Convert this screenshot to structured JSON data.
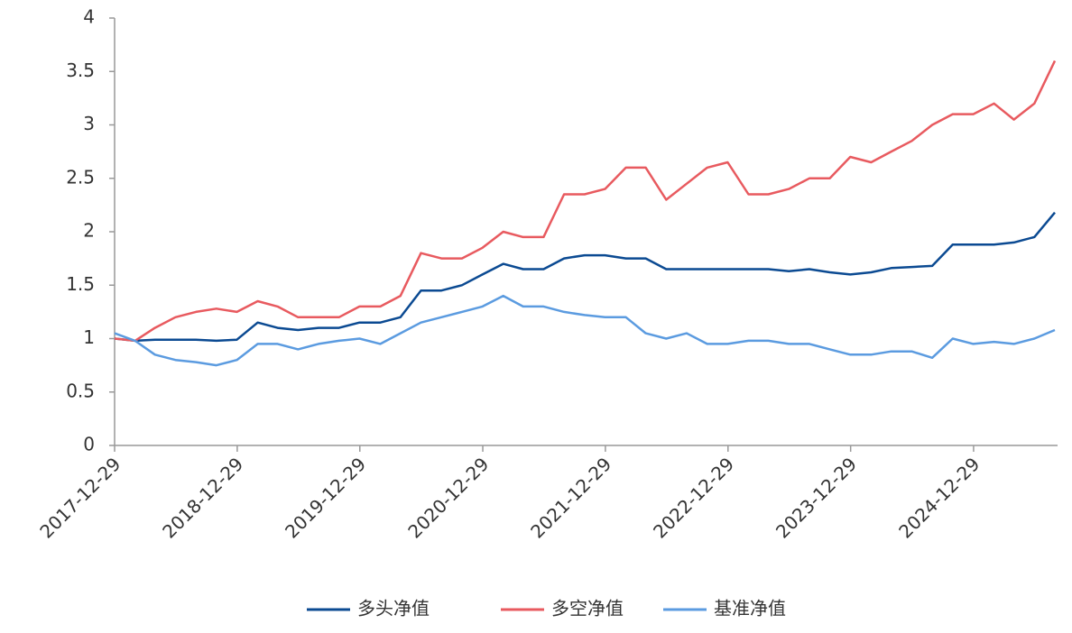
{
  "chart_data": {
    "type": "line",
    "x": [
      "2017-12-29",
      "2018-02-28",
      "2018-04-28",
      "2018-06-28",
      "2018-08-28",
      "2018-10-28",
      "2018-12-28",
      "2019-02-28",
      "2019-04-28",
      "2019-06-28",
      "2019-08-28",
      "2019-10-28",
      "2019-12-28",
      "2020-02-28",
      "2020-04-28",
      "2020-06-28",
      "2020-08-28",
      "2020-10-28",
      "2020-12-28",
      "2021-02-28",
      "2021-04-28",
      "2021-06-28",
      "2021-08-28",
      "2021-10-28",
      "2021-12-28",
      "2022-02-28",
      "2022-04-28",
      "2022-06-28",
      "2022-08-28",
      "2022-10-28",
      "2022-12-28",
      "2023-02-28",
      "2023-04-28",
      "2023-06-28",
      "2023-08-28",
      "2023-10-28",
      "2023-12-28",
      "2024-02-28",
      "2024-04-28",
      "2024-06-28",
      "2024-08-28",
      "2024-10-28",
      "2024-12-28",
      "2025-02-28",
      "2025-04-28",
      "2025-06-28",
      "2025-08-28"
    ],
    "series": [
      {
        "name": "多头净值",
        "color": "#0b4a92",
        "values": [
          1.0,
          0.98,
          0.99,
          0.99,
          0.99,
          0.98,
          0.99,
          1.15,
          1.1,
          1.08,
          1.1,
          1.1,
          1.15,
          1.15,
          1.2,
          1.45,
          1.45,
          1.5,
          1.6,
          1.7,
          1.65,
          1.65,
          1.75,
          1.78,
          1.78,
          1.75,
          1.75,
          1.65,
          1.65,
          1.65,
          1.65,
          1.65,
          1.65,
          1.63,
          1.65,
          1.62,
          1.6,
          1.62,
          1.66,
          1.67,
          1.68,
          1.88,
          1.88,
          1.88,
          1.9,
          1.95,
          2.18
        ]
      },
      {
        "name": "多空净值",
        "color": "#e85a5f",
        "values": [
          1.0,
          0.98,
          1.1,
          1.2,
          1.25,
          1.28,
          1.25,
          1.35,
          1.3,
          1.2,
          1.2,
          1.2,
          1.3,
          1.3,
          1.4,
          1.8,
          1.75,
          1.75,
          1.85,
          2.0,
          1.95,
          1.95,
          2.35,
          2.35,
          2.4,
          2.6,
          2.6,
          2.3,
          2.45,
          2.6,
          2.65,
          2.35,
          2.35,
          2.4,
          2.5,
          2.5,
          2.7,
          2.65,
          2.75,
          2.85,
          3.0,
          3.1,
          3.1,
          3.2,
          3.05,
          3.2,
          3.6
        ]
      },
      {
        "name": "基准净值",
        "color": "#5b9be0",
        "values": [
          1.05,
          0.98,
          0.85,
          0.8,
          0.78,
          0.75,
          0.8,
          0.95,
          0.95,
          0.9,
          0.95,
          0.98,
          1.0,
          0.95,
          1.05,
          1.15,
          1.2,
          1.25,
          1.3,
          1.4,
          1.3,
          1.3,
          1.25,
          1.22,
          1.2,
          1.2,
          1.05,
          1.0,
          1.05,
          0.95,
          0.95,
          0.98,
          0.98,
          0.95,
          0.95,
          0.9,
          0.85,
          0.85,
          0.88,
          0.88,
          0.82,
          1.0,
          0.95,
          0.97,
          0.95,
          1.0,
          1.08
        ]
      }
    ],
    "xlim": [
      "2017-12-29",
      "2025-09-05"
    ],
    "xticks": [
      "2017-12-29",
      "2018-12-29",
      "2019-12-29",
      "2020-12-29",
      "2021-12-29",
      "2022-12-29",
      "2023-12-29",
      "2024-12-29"
    ],
    "ylim": [
      0,
      4
    ],
    "yticks": [
      0,
      0.5,
      1,
      1.5,
      2,
      2.5,
      3,
      3.5,
      4
    ]
  }
}
